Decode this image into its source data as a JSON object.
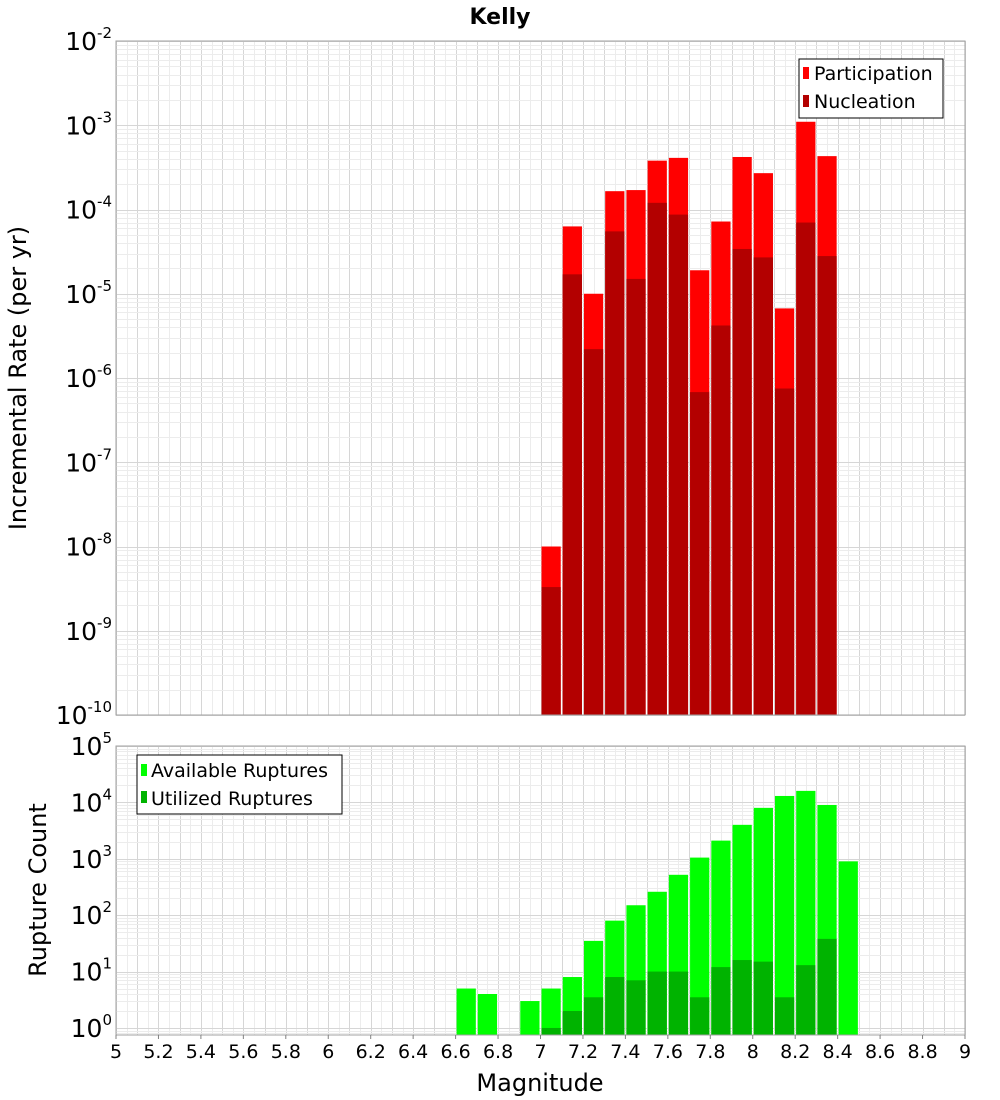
{
  "chart_data": [
    {
      "type": "bar",
      "title": "Kelly",
      "ylabel": "Incremental Rate (per yr)",
      "xlabel": "",
      "yscale": "log",
      "ylim": [
        1e-10,
        0.01
      ],
      "xlim": [
        5,
        9
      ],
      "grid": true,
      "legend_position": "top-right",
      "y_ticks": [
        {
          "base": "10",
          "exp": "-2",
          "value": 0.01
        },
        {
          "base": "10",
          "exp": "-3",
          "value": 0.001
        },
        {
          "base": "10",
          "exp": "-4",
          "value": 0.0001
        },
        {
          "base": "10",
          "exp": "-5",
          "value": 1e-05
        },
        {
          "base": "10",
          "exp": "-6",
          "value": 1e-06
        },
        {
          "base": "10",
          "exp": "-7",
          "value": 1e-07
        },
        {
          "base": "10",
          "exp": "-8",
          "value": 1e-08
        },
        {
          "base": "10",
          "exp": "-9",
          "value": 1e-09
        },
        {
          "base": "10",
          "exp": "-10",
          "value": 1e-10
        }
      ],
      "bar_width": 0.1,
      "x": [
        7.05,
        7.15,
        7.25,
        7.35,
        7.45,
        7.55,
        7.65,
        7.75,
        7.85,
        7.95,
        8.05,
        8.15,
        8.25,
        8.35
      ],
      "series": [
        {
          "name": "Participation",
          "color": "#ff0000",
          "values": [
            1e-08,
            6.3e-05,
            1e-05,
            0.000165,
            0.00017,
            0.00038,
            0.00041,
            1.9e-05,
            7.2e-05,
            0.00042,
            0.00027,
            6.7e-06,
            0.0011,
            0.00043
          ]
        },
        {
          "name": "Nucleation",
          "color": "#b30000",
          "values": [
            3.3e-09,
            1.7e-05,
            2.2e-06,
            5.5e-05,
            1.5e-05,
            0.00012,
            8.7e-05,
            6.8e-07,
            4.2e-06,
            3.4e-05,
            2.7e-05,
            7.5e-07,
            7e-05,
            2.8e-05
          ]
        }
      ]
    },
    {
      "type": "bar",
      "title": "",
      "ylabel": "Rupture Count",
      "xlabel": "Magnitude",
      "yscale": "log",
      "ylim": [
        0.75,
        100000.0
      ],
      "xlim": [
        5,
        9
      ],
      "grid": true,
      "legend_position": "top-left",
      "y_ticks": [
        {
          "base": "10",
          "exp": "5",
          "value": 100000.0
        },
        {
          "base": "10",
          "exp": "4",
          "value": 10000.0
        },
        {
          "base": "10",
          "exp": "3",
          "value": 1000.0
        },
        {
          "base": "10",
          "exp": "2",
          "value": 100.0
        },
        {
          "base": "10",
          "exp": "1",
          "value": 10.0
        },
        {
          "base": "10",
          "exp": "0",
          "value": 1
        }
      ],
      "x_ticks": [
        "5",
        "5.2",
        "5.4",
        "5.6",
        "5.8",
        "6",
        "6.2",
        "6.4",
        "6.6",
        "6.8",
        "7",
        "7.2",
        "7.4",
        "7.6",
        "7.8",
        "8",
        "8.2",
        "8.4",
        "8.6",
        "8.8",
        "9"
      ],
      "bar_width": 0.1,
      "series": [
        {
          "name": "Available Ruptures",
          "color": "#00ff00",
          "x": [
            6.65,
            6.75,
            6.95,
            7.05,
            7.15,
            7.25,
            7.35,
            7.45,
            7.55,
            7.65,
            7.75,
            7.85,
            7.95,
            8.05,
            8.15,
            8.25,
            8.35,
            8.45
          ],
          "values": [
            5,
            4,
            3,
            5,
            8,
            35,
            80,
            150,
            260,
            520,
            1050,
            2100,
            4000,
            8000,
            13000,
            16000,
            9000,
            900
          ]
        },
        {
          "name": "Utilized Ruptures",
          "color": "#00b300",
          "x": [
            7.05,
            7.15,
            7.25,
            7.35,
            7.45,
            7.55,
            7.65,
            7.75,
            7.85,
            7.95,
            8.05,
            8.15,
            8.25,
            8.35
          ],
          "values": [
            1,
            2,
            3.5,
            8,
            7,
            10,
            10,
            3.5,
            12,
            16,
            15,
            3.5,
            13,
            38
          ]
        }
      ]
    }
  ]
}
